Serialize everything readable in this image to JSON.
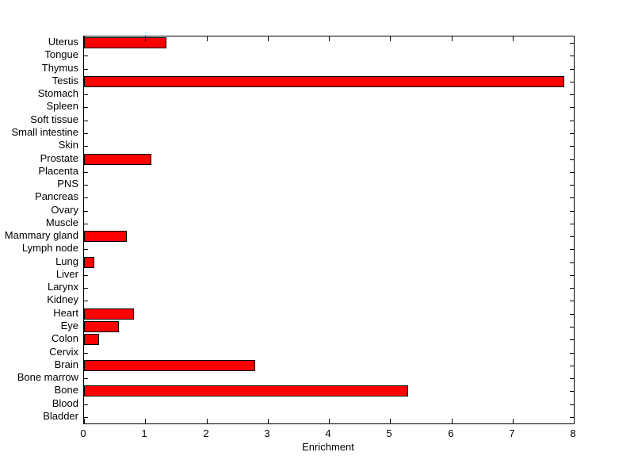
{
  "chart_data": {
    "type": "bar",
    "orientation": "horizontal",
    "title": "",
    "xlabel": "Enrichment",
    "ylabel": "",
    "xlim": [
      0,
      8
    ],
    "xticks": [
      0,
      1,
      2,
      3,
      4,
      5,
      6,
      7,
      8
    ],
    "grid": false,
    "legend": null,
    "bar_color": "#FF0000",
    "bar_edge_color": "#000000",
    "background_color": "#FFFFFF",
    "categories_top_to_bottom": [
      "Uterus",
      "Tongue",
      "Thymus",
      "Testis",
      "Stomach",
      "Spleen",
      "Soft tissue",
      "Small intestine",
      "Skin",
      "Prostate",
      "Placenta",
      "PNS",
      "Pancreas",
      "Ovary",
      "Muscle",
      "Mammary gland",
      "Lymph node",
      "Lung",
      "Liver",
      "Larynx",
      "Kidney",
      "Heart",
      "Eye",
      "Colon",
      "Cervix",
      "Brain",
      "Bone marrow",
      "Bone",
      "Blood",
      "Bladder"
    ],
    "values": [
      1.35,
      0,
      0,
      7.85,
      0,
      0,
      0,
      0,
      0,
      1.1,
      0,
      0,
      0,
      0,
      0,
      0.7,
      0,
      0.17,
      0,
      0,
      0,
      0.81,
      0.57,
      0.25,
      0,
      2.8,
      0,
      5.3,
      0,
      0
    ]
  }
}
